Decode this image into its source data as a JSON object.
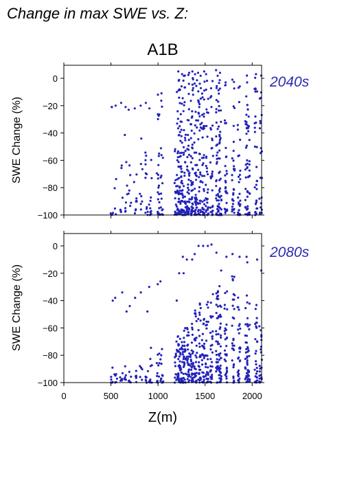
{
  "page_title": "Change in max SWE vs. Z:",
  "scenario": "A1B",
  "point_color": "#2222bb",
  "period_color": "#2a2ab5",
  "chart_data": [
    {
      "type": "scatter",
      "period_label": "2040s",
      "ylabel": "SWE Change (%)",
      "xlabel": "",
      "xlim": [
        0,
        2100
      ],
      "ylim": [
        -100,
        10
      ],
      "xticks": [
        0,
        500,
        1000,
        1500,
        2000
      ],
      "yticks": [
        0,
        -20,
        -40,
        -60,
        -80,
        -100
      ],
      "xtick_labels_shown": false,
      "grid": false,
      "columns": [
        {
          "x": 510,
          "n": 4,
          "min": -100,
          "max": -96,
          "top": [
            -21,
            -21
          ]
        },
        {
          "x": 550,
          "n": 4,
          "min": -100,
          "max": -60,
          "top": [
            -20
          ]
        },
        {
          "x": 610,
          "n": 6,
          "min": -98,
          "max": -62,
          "top": [
            -18
          ]
        },
        {
          "x": 660,
          "n": 8,
          "min": -100,
          "max": -40,
          "top": [
            -21
          ]
        },
        {
          "x": 700,
          "n": 6,
          "min": -95,
          "max": -45,
          "top": [
            -23
          ]
        },
        {
          "x": 760,
          "n": 10,
          "min": -100,
          "max": -60,
          "top": [
            -22
          ]
        },
        {
          "x": 820,
          "n": 8,
          "min": -96,
          "max": -40,
          "top": [
            -20
          ]
        },
        {
          "x": 880,
          "n": 12,
          "min": -100,
          "max": -45,
          "top": [
            -18
          ]
        },
        {
          "x": 920,
          "n": 10,
          "min": -100,
          "max": -40,
          "top": [
            -22
          ]
        },
        {
          "x": 1000,
          "n": 22,
          "min": -100,
          "max": -13,
          "top": [
            -12
          ]
        },
        {
          "x": 1040,
          "n": 16,
          "min": -100,
          "max": -15,
          "top": [
            -11
          ]
        },
        {
          "x": 1190,
          "n": 18,
          "min": -100,
          "max": -20,
          "top": [
            -10
          ]
        },
        {
          "x": 1220,
          "n": 45,
          "min": -100,
          "max": 5,
          "top": [
            5
          ]
        },
        {
          "x": 1250,
          "n": 45,
          "min": -100,
          "max": 4,
          "top": [
            3
          ]
        },
        {
          "x": 1280,
          "n": 40,
          "min": -100,
          "max": 2,
          "top": [
            2
          ]
        },
        {
          "x": 1320,
          "n": 45,
          "min": -100,
          "max": 4,
          "top": [
            4
          ]
        },
        {
          "x": 1360,
          "n": 45,
          "min": -100,
          "max": 5,
          "top": [
            5
          ]
        },
        {
          "x": 1400,
          "n": 40,
          "min": -100,
          "max": 3,
          "top": [
            3
          ]
        },
        {
          "x": 1440,
          "n": 40,
          "min": -100,
          "max": 4,
          "top": [
            4
          ]
        },
        {
          "x": 1480,
          "n": 40,
          "min": -100,
          "max": 5,
          "top": [
            5
          ]
        },
        {
          "x": 1520,
          "n": 30,
          "min": -100,
          "max": 3,
          "top": [
            3
          ]
        },
        {
          "x": 1570,
          "n": 30,
          "min": -100,
          "max": -2,
          "top": [
            -2
          ]
        },
        {
          "x": 1630,
          "n": 40,
          "min": -100,
          "max": 6,
          "top": [
            6
          ]
        },
        {
          "x": 1660,
          "n": 40,
          "min": -100,
          "max": 4,
          "top": [
            4
          ]
        },
        {
          "x": 1720,
          "n": 30,
          "min": -100,
          "max": -3,
          "top": [
            -3
          ]
        },
        {
          "x": 1800,
          "n": 30,
          "min": -100,
          "max": -1,
          "top": [
            -1
          ]
        },
        {
          "x": 1860,
          "n": 28,
          "min": -100,
          "max": -6,
          "top": [
            -6
          ]
        },
        {
          "x": 1940,
          "n": 30,
          "min": -100,
          "max": 2,
          "top": [
            2
          ]
        },
        {
          "x": 1960,
          "n": 25,
          "min": -100,
          "max": -3,
          "top": [
            -3
          ]
        },
        {
          "x": 2040,
          "n": 28,
          "min": -100,
          "max": 3,
          "top": [
            3
          ]
        },
        {
          "x": 2090,
          "n": 20,
          "min": -100,
          "max": 2,
          "top": [
            2
          ]
        }
      ]
    },
    {
      "type": "scatter",
      "period_label": "2080s",
      "ylabel": "SWE Change (%)",
      "xlabel": "Z(m)",
      "xlim": [
        0,
        2100
      ],
      "ylim": [
        -100,
        10
      ],
      "xticks": [
        0,
        500,
        1000,
        1500,
        2000
      ],
      "yticks": [
        0,
        -20,
        -40,
        -60,
        -80,
        -100
      ],
      "xtick_labels_shown": true,
      "grid": false,
      "columns": [
        {
          "x": 510,
          "n": 6,
          "min": -100,
          "max": -85,
          "top": [
            -40
          ]
        },
        {
          "x": 550,
          "n": 6,
          "min": -100,
          "max": -86,
          "top": [
            -38
          ]
        },
        {
          "x": 610,
          "n": 6,
          "min": -100,
          "max": -88,
          "top": [
            -34
          ]
        },
        {
          "x": 660,
          "n": 6,
          "min": -98,
          "max": -85,
          "top": [
            -48
          ]
        },
        {
          "x": 700,
          "n": 6,
          "min": -100,
          "max": -86,
          "top": [
            -44
          ]
        },
        {
          "x": 760,
          "n": 6,
          "min": -100,
          "max": -88,
          "top": [
            -38
          ]
        },
        {
          "x": 820,
          "n": 6,
          "min": -98,
          "max": -84,
          "top": [
            -34
          ]
        },
        {
          "x": 880,
          "n": 8,
          "min": -100,
          "max": -86,
          "top": [
            -48
          ]
        },
        {
          "x": 920,
          "n": 10,
          "min": -100,
          "max": -72,
          "top": [
            -30
          ]
        },
        {
          "x": 1000,
          "n": 12,
          "min": -100,
          "max": -75,
          "top": [
            -28
          ]
        },
        {
          "x": 1040,
          "n": 12,
          "min": -100,
          "max": -75,
          "top": [
            -26
          ]
        },
        {
          "x": 1190,
          "n": 14,
          "min": -100,
          "max": -65,
          "top": [
            -40
          ]
        },
        {
          "x": 1220,
          "n": 30,
          "min": -100,
          "max": -65,
          "top": [
            -20
          ]
        },
        {
          "x": 1250,
          "n": 30,
          "min": -100,
          "max": -70,
          "top": [
            -8
          ]
        },
        {
          "x": 1280,
          "n": 30,
          "min": -100,
          "max": -60,
          "top": [
            -20
          ]
        },
        {
          "x": 1320,
          "n": 30,
          "min": -100,
          "max": -60,
          "top": [
            -10
          ]
        },
        {
          "x": 1360,
          "n": 30,
          "min": -100,
          "max": -55,
          "top": [
            -10
          ]
        },
        {
          "x": 1400,
          "n": 30,
          "min": -100,
          "max": -45,
          "top": [
            -6
          ]
        },
        {
          "x": 1440,
          "n": 30,
          "min": -100,
          "max": -40,
          "top": [
            0
          ]
        },
        {
          "x": 1480,
          "n": 30,
          "min": -100,
          "max": -45,
          "top": [
            0
          ]
        },
        {
          "x": 1520,
          "n": 28,
          "min": -100,
          "max": -40,
          "top": [
            0
          ]
        },
        {
          "x": 1570,
          "n": 28,
          "min": -100,
          "max": -30,
          "top": [
            1
          ]
        },
        {
          "x": 1630,
          "n": 35,
          "min": -100,
          "max": -20,
          "top": [
            -5
          ]
        },
        {
          "x": 1660,
          "n": 35,
          "min": -100,
          "max": -25,
          "top": [
            -18
          ]
        },
        {
          "x": 1720,
          "n": 30,
          "min": -100,
          "max": -30,
          "top": [
            -8
          ]
        },
        {
          "x": 1800,
          "n": 30,
          "min": -100,
          "max": -20,
          "top": [
            -6
          ]
        },
        {
          "x": 1860,
          "n": 28,
          "min": -100,
          "max": -35,
          "top": [
            -8
          ]
        },
        {
          "x": 1940,
          "n": 28,
          "min": -100,
          "max": -25,
          "top": [
            -8
          ]
        },
        {
          "x": 1960,
          "n": 25,
          "min": -100,
          "max": -40,
          "top": [
            -12
          ]
        },
        {
          "x": 2040,
          "n": 28,
          "min": -100,
          "max": -40,
          "top": [
            -10
          ]
        },
        {
          "x": 2090,
          "n": 22,
          "min": -100,
          "max": -45,
          "top": [
            -18
          ]
        }
      ]
    }
  ]
}
